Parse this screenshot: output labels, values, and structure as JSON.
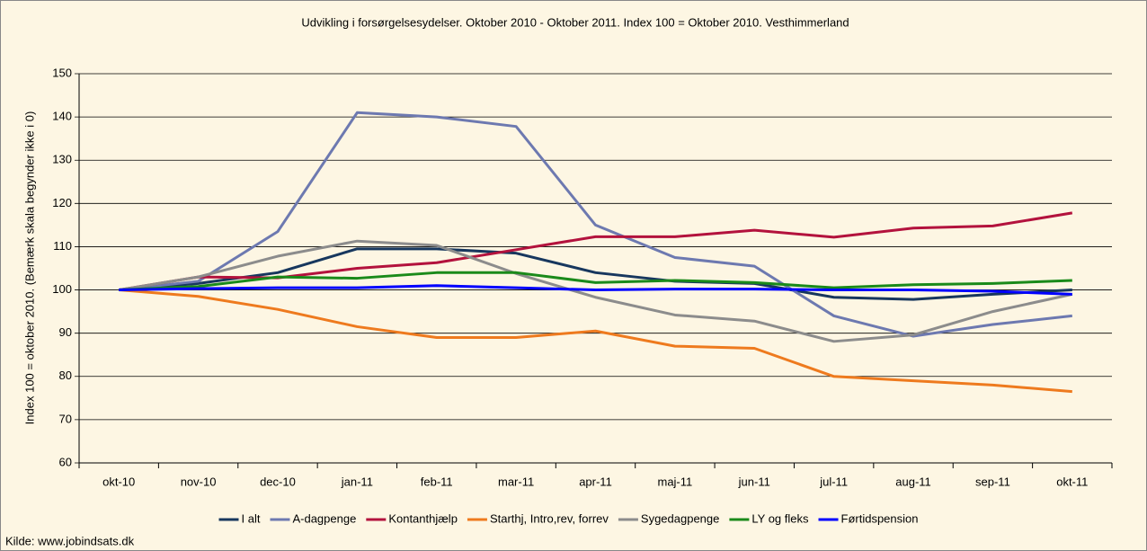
{
  "chart_data": {
    "type": "line",
    "title": "Udvikling i forsørgelsesydelser. Oktober 2010 - Oktober 2011. Index 100 = Oktober 2010. Vesthimmerland",
    "y_label": "Index 100 = oktober 2010. (Bemærk skala begynder ikke i 0)",
    "source": "Kilde: www.jobindsats.dk",
    "categories": [
      "okt-10",
      "nov-10",
      "dec-10",
      "jan-11",
      "feb-11",
      "mar-11",
      "apr-11",
      "maj-11",
      "jun-11",
      "jul-11",
      "aug-11",
      "sep-11",
      "okt-11"
    ],
    "ylim": [
      60,
      150
    ],
    "yticks": [
      60,
      70,
      80,
      90,
      100,
      110,
      120,
      130,
      140,
      150
    ],
    "grid": true,
    "legend": "bottom",
    "series": [
      {
        "name": "I alt",
        "color": "#17375e",
        "values": [
          100,
          101.5,
          104,
          109.5,
          109.5,
          108.5,
          104,
          102,
          101.5,
          98.3,
          97.8,
          99,
          100
        ]
      },
      {
        "name": "A-dagpenge",
        "color": "#6d79b0",
        "values": [
          100,
          102,
          113.5,
          141,
          140,
          137.8,
          115,
          107.5,
          105.5,
          94,
          89.3,
          92,
          94
        ]
      },
      {
        "name": "Kontanthjælp",
        "color": "#b3123d",
        "values": [
          100,
          103,
          102.8,
          105,
          106.3,
          109.3,
          112.3,
          112.3,
          113.8,
          112.2,
          114.3,
          114.8,
          117.8
        ]
      },
      {
        "name": "Starthj, Intro,rev, forrev",
        "color": "#ee7a1e",
        "values": [
          100,
          98.5,
          95.5,
          91.5,
          89,
          89,
          90.5,
          87,
          86.5,
          80,
          79,
          78,
          76.5
        ]
      },
      {
        "name": "Sygedagpenge",
        "color": "#8c8c8c",
        "values": [
          100,
          103,
          107.8,
          111.3,
          110.3,
          103.8,
          98.3,
          94.2,
          92.8,
          88.1,
          89.6,
          95,
          99
        ]
      },
      {
        "name": "LY og fleks",
        "color": "#1a8a1a",
        "values": [
          100,
          100.8,
          103,
          102.7,
          104,
          104,
          101.7,
          102.2,
          101.7,
          100.5,
          101.2,
          101.5,
          102.2
        ]
      },
      {
        "name": "Førtidspension",
        "color": "#0000ff",
        "values": [
          100,
          100.3,
          100.5,
          100.5,
          101,
          100.5,
          100,
          100.2,
          100.2,
          100,
          100,
          99.7,
          99
        ]
      }
    ]
  }
}
